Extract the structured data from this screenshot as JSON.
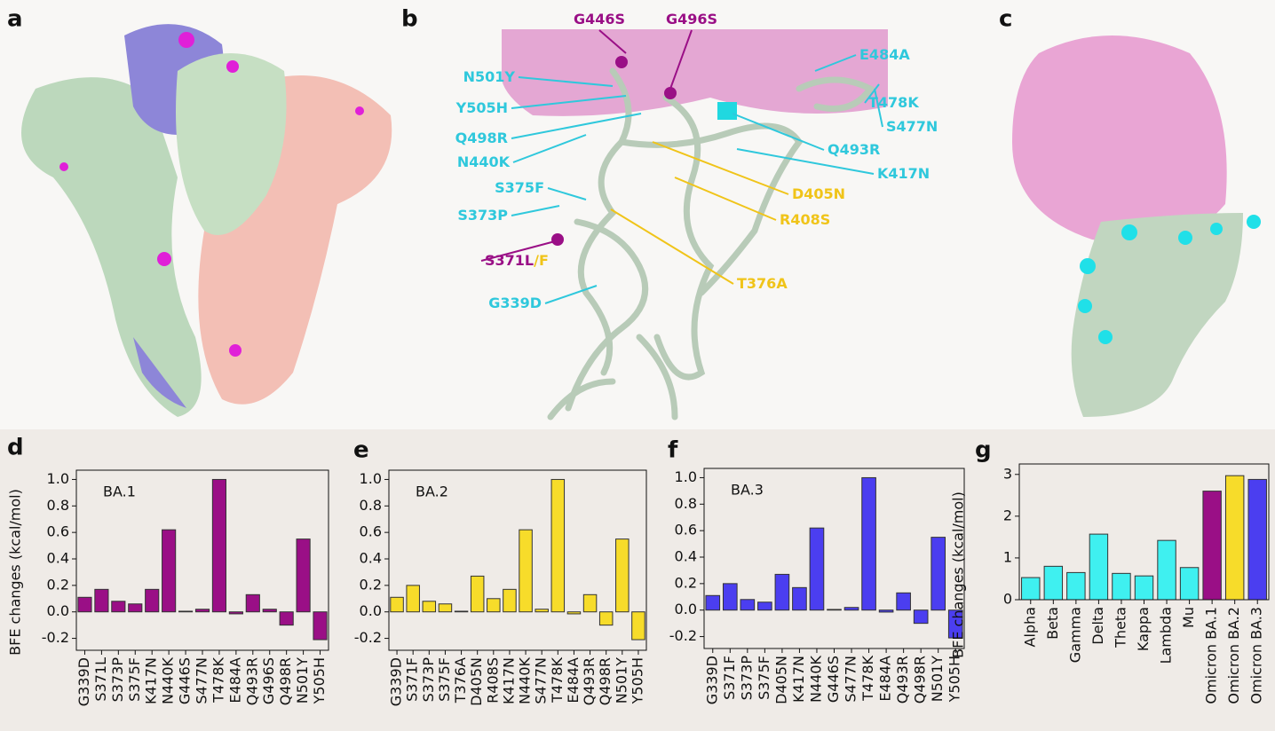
{
  "structure_panels": [
    {
      "label": "a"
    },
    {
      "label": "b",
      "labels": [
        {
          "text": "G446S",
          "color": "#9a0f86"
        },
        {
          "text": "G496S",
          "color": "#9a0f86"
        },
        {
          "text": "E484A",
          "color": "#2fc8dc"
        },
        {
          "text": "N501Y",
          "color": "#2fc8dc"
        },
        {
          "text": "T478K",
          "color": "#2fc8dc"
        },
        {
          "text": "Y505H",
          "color": "#2fc8dc"
        },
        {
          "text": "S477N",
          "color": "#2fc8dc"
        },
        {
          "text": "Q498R",
          "color": "#2fc8dc"
        },
        {
          "text": "Q493R",
          "color": "#2fc8dc"
        },
        {
          "text": "N440K",
          "color": "#2fc8dc"
        },
        {
          "text": "K417N",
          "color": "#2fc8dc"
        },
        {
          "text": "D405N",
          "color": "#f0c419"
        },
        {
          "text": "S375F",
          "color": "#2fc8dc"
        },
        {
          "text": "S373P",
          "color": "#2fc8dc"
        },
        {
          "text": "R408S",
          "color": "#f0c419"
        },
        {
          "text": "S371L",
          "color": "#9a0f86",
          "suffix": "/F",
          "suffix_color": "#f0c419"
        },
        {
          "text": "T376A",
          "color": "#f0c419"
        },
        {
          "text": "G339D",
          "color": "#2fc8dc"
        }
      ]
    },
    {
      "label": "c"
    }
  ],
  "chart_data": [
    {
      "type": "bar",
      "panel_label": "d",
      "ylabel": "BFE changes (kcal/mol)",
      "annotation": "BA.1",
      "color": "#9a0f86",
      "categories": [
        "G339D",
        "S371L",
        "S373P",
        "S375F",
        "K417N",
        "N440K",
        "G446S",
        "S477N",
        "T478K",
        "E484A",
        "Q493R",
        "G496S",
        "Q498R",
        "N501Y",
        "Y505H"
      ],
      "values": [
        0.11,
        0.17,
        0.08,
        0.06,
        0.17,
        0.62,
        0.005,
        0.02,
        1.0,
        -0.015,
        0.13,
        0.02,
        -0.1,
        0.55,
        -0.21
      ],
      "ylim": [
        -0.29,
        1.07
      ],
      "yticks": [
        -0.2,
        {
          "value": 0,
          "label": "0.0"
        },
        0.2,
        0.4,
        0.6,
        0.8,
        {
          "value": 1,
          "label": "1.0"
        }
      ]
    },
    {
      "type": "bar",
      "panel_label": "e",
      "annotation": "BA.2",
      "color": "#f7dc2a",
      "categories": [
        "G339D",
        "S371F",
        "S373P",
        "S375F",
        "T376A",
        "D405N",
        "R408S",
        "K417N",
        "N440K",
        "S477N",
        "T478K",
        "E484A",
        "Q493R",
        "Q498R",
        "N501Y",
        "Y505H"
      ],
      "values": [
        0.11,
        0.2,
        0.08,
        0.06,
        0.005,
        0.27,
        0.1,
        0.17,
        0.62,
        0.02,
        1.0,
        -0.015,
        0.13,
        -0.1,
        0.55,
        -0.21
      ],
      "ylim": [
        -0.29,
        1.07
      ],
      "yticks": [
        -0.2,
        {
          "value": 0,
          "label": "0.0"
        },
        0.2,
        0.4,
        0.6,
        0.8,
        {
          "value": 1,
          "label": "1.0"
        }
      ]
    },
    {
      "type": "bar",
      "panel_label": "f",
      "annotation": "BA.3",
      "color": "#4b3ef0",
      "categories": [
        "G339D",
        "S371F",
        "S373P",
        "S375F",
        "D405N",
        "K417N",
        "N440K",
        "G446S",
        "S477N",
        "T478K",
        "E484A",
        "Q493R",
        "Q498R",
        "N501Y",
        "Y505H"
      ],
      "values": [
        0.11,
        0.2,
        0.08,
        0.06,
        0.27,
        0.17,
        0.62,
        0.005,
        0.02,
        1.0,
        -0.015,
        0.13,
        -0.1,
        0.55,
        -0.21
      ],
      "ylim": [
        -0.29,
        1.07
      ],
      "yticks": [
        -0.2,
        {
          "value": 0,
          "label": "0.0"
        },
        0.2,
        0.4,
        0.6,
        0.8,
        {
          "value": 1,
          "label": "1.0"
        }
      ]
    },
    {
      "type": "bar",
      "panel_label": "g",
      "ylabel": "BFE changes (kcal/mol)",
      "categories": [
        "Alpha",
        "Beta",
        "Gamma",
        "Delta",
        "Theta",
        "Kappa",
        "Lambda",
        "Mu",
        "Omicron BA.1",
        "Omicron BA.2",
        "Omicron BA.3"
      ],
      "values": [
        0.53,
        0.8,
        0.65,
        1.57,
        0.63,
        0.57,
        1.42,
        0.77,
        2.6,
        2.97,
        2.88
      ],
      "colors": [
        "#3ff0f0",
        "#3ff0f0",
        "#3ff0f0",
        "#3ff0f0",
        "#3ff0f0",
        "#3ff0f0",
        "#3ff0f0",
        "#3ff0f0",
        "#9a0f86",
        "#f7dc2a",
        "#4b3ef0"
      ],
      "ylim": [
        0,
        3.25
      ],
      "yticks": [
        0,
        1,
        2,
        3
      ]
    }
  ]
}
